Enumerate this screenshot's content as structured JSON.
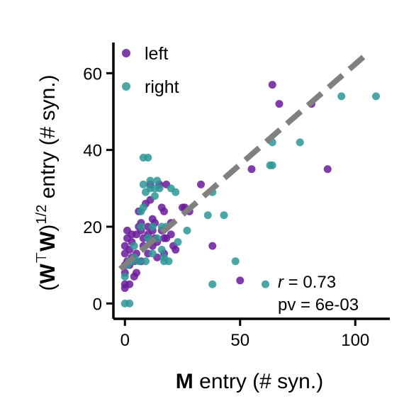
{
  "chart_data": {
    "type": "scatter",
    "xlabel_bold": "M",
    "xlabel_rest": " entry (# syn.)",
    "ylabel_bold": "W",
    "ylabel_sup_t": "⊤",
    "ylabel_sup_half": "1/2",
    "ylabel_rest": " entry (# syn.)",
    "xlim": [
      -5,
      115
    ],
    "ylim": [
      -4,
      68
    ],
    "xticks": [
      0,
      50,
      100
    ],
    "yticks": [
      0,
      20,
      40,
      60
    ],
    "grid": false,
    "legend_position": "top-left",
    "fit_line": {
      "x": [
        -2,
        105
      ],
      "y": [
        9,
        65
      ],
      "color": "#808080",
      "style": "dashed"
    },
    "stats": {
      "r_symbol": "r",
      "r_text": " = 0.73",
      "pv_text": "pv = 6e-03"
    },
    "series": [
      {
        "name": "left",
        "color": "#6a1b9a",
        "points": [
          [
            0,
            4
          ],
          [
            0,
            5
          ],
          [
            0,
            8
          ],
          [
            0,
            10
          ],
          [
            0,
            13
          ],
          [
            0,
            15
          ],
          [
            1,
            11
          ],
          [
            1,
            17
          ],
          [
            1,
            19
          ],
          [
            2,
            5
          ],
          [
            2,
            10
          ],
          [
            2,
            14
          ],
          [
            3,
            12
          ],
          [
            3,
            16
          ],
          [
            3,
            18
          ],
          [
            4,
            7
          ],
          [
            4,
            11
          ],
          [
            5,
            8
          ],
          [
            5,
            13
          ],
          [
            5,
            18
          ],
          [
            6,
            20
          ],
          [
            6,
            24
          ],
          [
            7,
            11
          ],
          [
            7,
            19
          ],
          [
            7,
            21
          ],
          [
            8,
            15
          ],
          [
            8,
            17
          ],
          [
            9,
            26
          ],
          [
            10,
            13
          ],
          [
            10,
            18
          ],
          [
            10,
            20
          ],
          [
            11,
            16
          ],
          [
            11,
            27
          ],
          [
            11,
            31
          ],
          [
            12,
            15
          ],
          [
            12,
            19
          ],
          [
            12,
            22
          ],
          [
            13,
            17
          ],
          [
            13,
            21
          ],
          [
            14,
            12
          ],
          [
            14,
            16
          ],
          [
            15,
            31
          ],
          [
            16,
            19
          ],
          [
            16,
            25
          ],
          [
            17,
            13
          ],
          [
            17,
            17
          ],
          [
            17,
            24
          ],
          [
            18,
            17
          ],
          [
            18,
            31
          ],
          [
            20,
            18
          ],
          [
            20,
            21
          ],
          [
            21,
            15
          ],
          [
            22,
            14
          ],
          [
            25,
            25
          ],
          [
            26,
            25
          ],
          [
            28,
            24
          ],
          [
            33,
            31
          ],
          [
            38,
            15
          ],
          [
            50,
            6
          ],
          [
            55,
            35
          ],
          [
            64,
            57
          ],
          [
            67,
            52
          ],
          [
            81,
            52
          ],
          [
            88,
            35
          ]
        ]
      },
      {
        "name": "right",
        "color": "#2e9696",
        "points": [
          [
            0,
            0
          ],
          [
            0,
            7
          ],
          [
            1,
            10
          ],
          [
            2,
            0
          ],
          [
            2,
            11
          ],
          [
            3,
            11
          ],
          [
            4,
            12
          ],
          [
            4,
            15
          ],
          [
            6,
            11
          ],
          [
            7,
            20
          ],
          [
            7,
            24
          ],
          [
            8,
            25
          ],
          [
            8,
            38
          ],
          [
            8,
            31
          ],
          [
            9,
            11
          ],
          [
            9,
            29
          ],
          [
            10,
            38
          ],
          [
            10,
            17
          ],
          [
            11,
            30
          ],
          [
            11,
            32
          ],
          [
            12,
            13
          ],
          [
            12,
            20
          ],
          [
            13,
            28
          ],
          [
            13,
            30
          ],
          [
            14,
            17
          ],
          [
            14,
            32
          ],
          [
            15,
            30
          ],
          [
            16,
            14
          ],
          [
            16,
            20
          ],
          [
            17,
            12
          ],
          [
            17,
            11
          ],
          [
            18,
            20
          ],
          [
            19,
            11
          ],
          [
            20,
            30
          ],
          [
            22,
            29
          ],
          [
            23,
            16
          ],
          [
            27,
            19
          ],
          [
            36,
            23
          ],
          [
            38,
            29
          ],
          [
            38,
            5
          ],
          [
            43,
            23
          ],
          [
            48,
            11
          ],
          [
            61,
            5
          ],
          [
            63,
            36
          ],
          [
            64,
            36
          ],
          [
            64,
            42
          ],
          [
            76,
            42
          ],
          [
            94,
            54
          ],
          [
            109,
            54
          ]
        ]
      }
    ]
  }
}
